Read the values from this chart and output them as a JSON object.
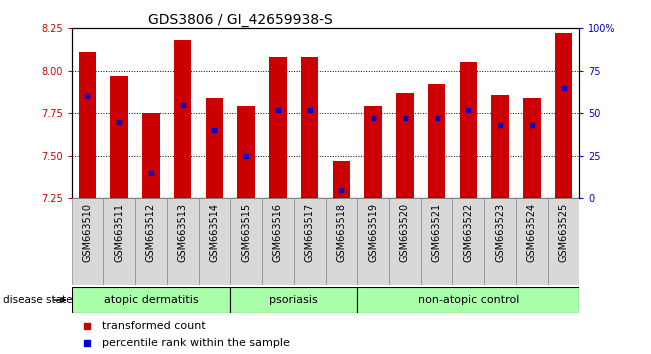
{
  "title": "GDS3806 / GI_42659938-S",
  "samples": [
    "GSM663510",
    "GSM663511",
    "GSM663512",
    "GSM663513",
    "GSM663514",
    "GSM663515",
    "GSM663516",
    "GSM663517",
    "GSM663518",
    "GSM663519",
    "GSM663520",
    "GSM663521",
    "GSM663522",
    "GSM663523",
    "GSM663524",
    "GSM663525"
  ],
  "bar_values": [
    8.11,
    7.97,
    7.75,
    8.18,
    7.84,
    7.79,
    8.08,
    8.08,
    7.47,
    7.79,
    7.87,
    7.92,
    8.05,
    7.86,
    7.84,
    8.22
  ],
  "percentile_values": [
    60,
    45,
    15,
    55,
    40,
    25,
    52,
    52,
    5,
    47,
    47,
    47,
    52,
    43,
    43,
    65
  ],
  "ylim_left": [
    7.25,
    8.25
  ],
  "ylim_right": [
    0,
    100
  ],
  "yticks_left": [
    7.25,
    7.5,
    7.75,
    8.0,
    8.25
  ],
  "yticks_right": [
    0,
    25,
    50,
    75,
    100
  ],
  "ytick_labels_right": [
    "0",
    "25",
    "50",
    "75",
    "100%"
  ],
  "bar_color": "#cc0000",
  "dot_color": "#0000cc",
  "bar_width": 0.55,
  "group_labels": [
    "atopic dermatitis",
    "psoriasis",
    "non-atopic control"
  ],
  "group_starts": [
    0,
    5,
    9
  ],
  "group_ends": [
    4,
    8,
    15
  ],
  "group_color": "#aaffaa",
  "disease_state_label": "disease state",
  "legend_bar_label": "transformed count",
  "legend_dot_label": "percentile rank within the sample",
  "title_fontsize": 10,
  "tick_fontsize": 7,
  "group_fontsize": 8,
  "legend_fontsize": 8,
  "background_color": "#ffffff",
  "tick_color_left": "#cc0000",
  "tick_color_right": "#0000cc",
  "gridline_yticks": [
    7.5,
    7.75,
    8.0
  ]
}
